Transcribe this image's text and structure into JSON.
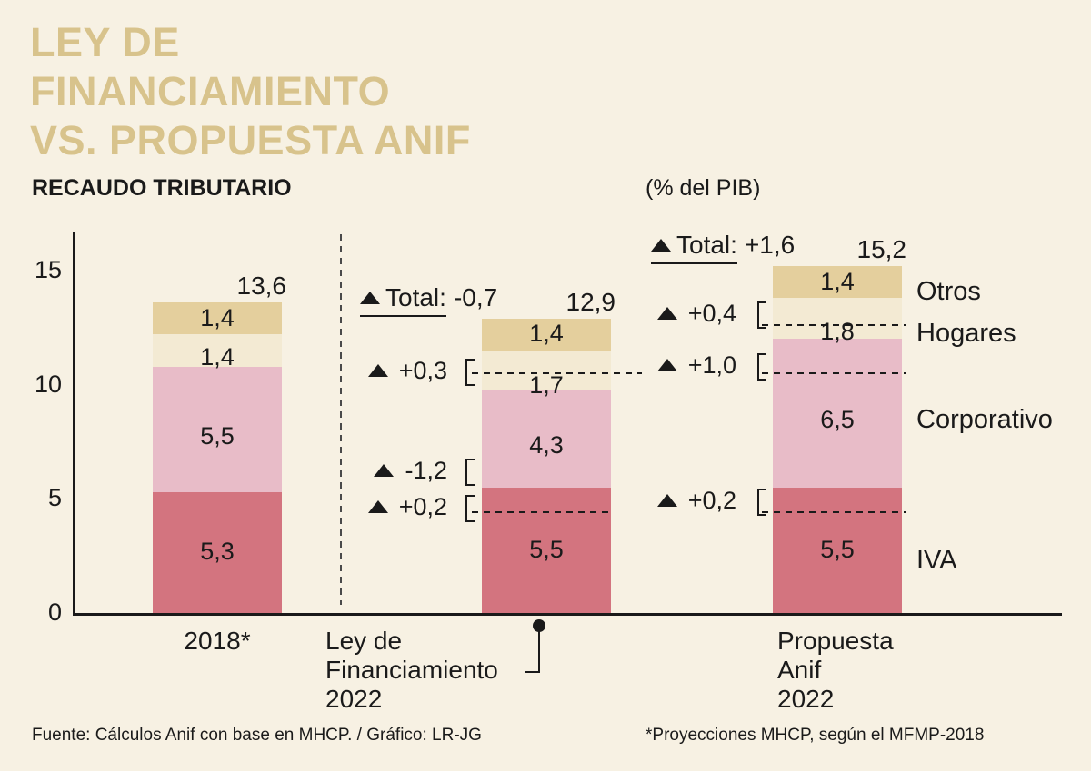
{
  "colors": {
    "background": "#f7f1e3",
    "title": "#d8c38c",
    "text": "#1a1a1a",
    "series": {
      "iva": "#d3747f",
      "corporativo": "#e8bcc8",
      "hogares": "#f3ead3",
      "otros": "#e4cf9d"
    }
  },
  "header": {
    "title_lines": [
      "LEY DE",
      "FINANCIAMIENTO",
      "VS. PROPUESTA ANIF"
    ],
    "subtitle": "RECAUDO TRIBUTARIO",
    "unit_label": "(% del PIB)"
  },
  "chart_data": {
    "type": "bar",
    "stacked": true,
    "title": "RECAUDO TRIBUTARIO",
    "unit": "% del PIB",
    "ylim": [
      0,
      16.6
    ],
    "yticks": [
      0,
      5,
      10,
      15
    ],
    "grid": false,
    "legend_position": "right",
    "categories": [
      "2018*",
      "Ley de Financiamiento 2022",
      "Propuesta Anif 2022"
    ],
    "series": [
      {
        "name": "IVA",
        "values": [
          5.3,
          5.5,
          5.5
        ],
        "labels": [
          "5,3",
          "5,5",
          "5,5"
        ]
      },
      {
        "name": "Corporativo",
        "values": [
          5.5,
          4.3,
          6.5
        ],
        "labels": [
          "5,5",
          "4,3",
          "6,5"
        ]
      },
      {
        "name": "Hogares",
        "values": [
          1.4,
          1.7,
          1.8
        ],
        "labels": [
          "1,4",
          "1,7",
          "1,8"
        ]
      },
      {
        "name": "Otros",
        "values": [
          1.4,
          1.4,
          1.4
        ],
        "labels": [
          "1,4",
          "1,4",
          "1,4"
        ]
      }
    ],
    "totals": {
      "values": [
        13.6,
        12.9,
        15.2
      ],
      "labels": [
        "13,6",
        "12,9",
        "15,2"
      ]
    },
    "total_annotations": [
      {
        "bar": 1,
        "prefix": "Total:",
        "delta": "-0,7"
      },
      {
        "bar": 2,
        "prefix": "Total:",
        "delta": "+1,6"
      }
    ],
    "delta_annotations": [
      {
        "bar": 1,
        "segment": "Hogares",
        "label": "+0,3"
      },
      {
        "bar": 1,
        "segment": "Corporativo",
        "label": "-1,2"
      },
      {
        "bar": 1,
        "segment": "IVA",
        "label": "+0,2"
      },
      {
        "bar": 2,
        "segment": "Hogares",
        "label": "+0,4"
      },
      {
        "bar": 2,
        "segment": "Corporativo",
        "label": "+1,0"
      },
      {
        "bar": 2,
        "segment": "IVA",
        "label": "+0,2"
      }
    ],
    "legend_right": [
      "Otros",
      "Hogares",
      "Corporativo",
      "IVA"
    ]
  },
  "xaxis": {
    "label_2018": "2018*",
    "label_ley_lines": [
      "Ley de",
      "Financiamiento",
      "2022"
    ],
    "label_anif_lines": [
      "Propuesta",
      "Anif",
      "2022"
    ]
  },
  "footer": {
    "source": "Fuente: Cálculos Anif con base en MHCP. / Gráfico: LR-JG",
    "note": "*Proyecciones MHCP, según el MFMP-2018"
  }
}
